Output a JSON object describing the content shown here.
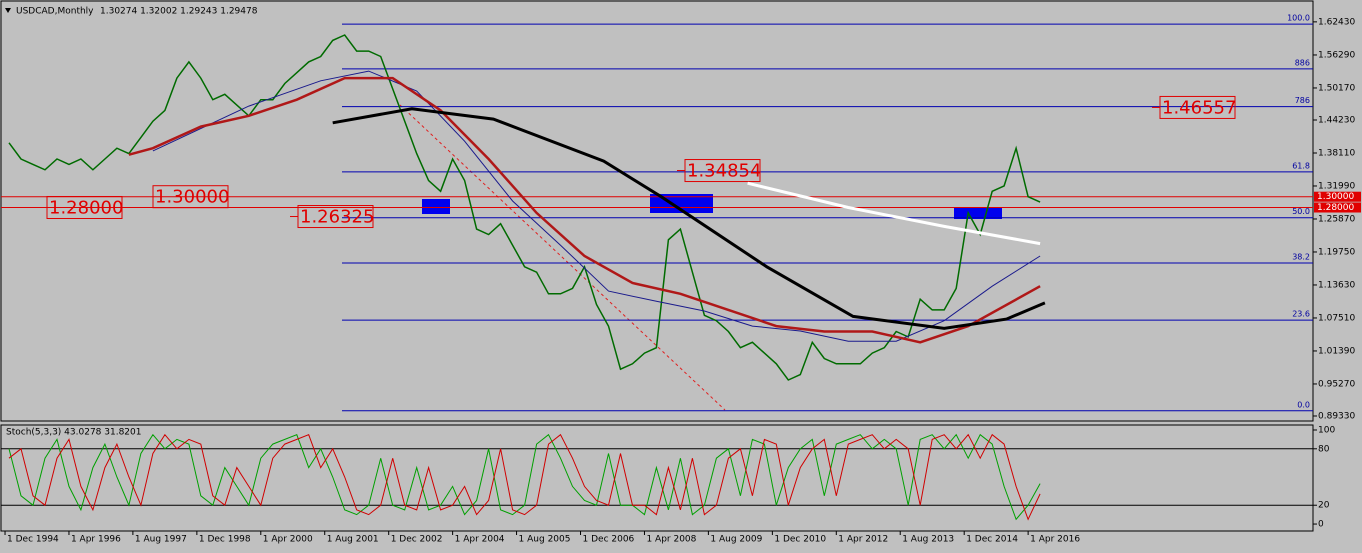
{
  "chart_data": [
    {
      "type": "line",
      "title": "USDCAD,Monthly",
      "subtitle": "1.30274 1.32002 1.29243 1.29478",
      "xlim": [
        1994.833,
        2022.19
      ],
      "ylim": [
        0.884,
        1.663
      ],
      "yticks": [
        {
          "value": 1.6243,
          "label": "1.62430"
        },
        {
          "value": 1.5629,
          "label": "1.56290"
        },
        {
          "value": 1.5017,
          "label": "1.50170"
        },
        {
          "value": 1.4423,
          "label": "1.44230"
        },
        {
          "value": 1.3811,
          "label": "1.38110"
        },
        {
          "value": 1.3199,
          "label": "1.31990"
        },
        {
          "value": 1.2587,
          "label": "1.25870"
        },
        {
          "value": 1.1975,
          "label": "1.19750"
        },
        {
          "value": 1.1363,
          "label": "1.13630"
        },
        {
          "value": 1.0751,
          "label": "1.07510"
        },
        {
          "value": 1.0139,
          "label": "1.01390"
        },
        {
          "value": 0.9527,
          "label": "0.95270"
        },
        {
          "value": 0.8933,
          "label": "0.89330"
        }
      ],
      "fib_levels": [
        {
          "value": 1.62,
          "label": "100.0"
        },
        {
          "value": 1.537,
          "label": "886"
        },
        {
          "value": 1.467,
          "label": "786"
        },
        {
          "value": 1.346,
          "label": "61.8"
        },
        {
          "value": 1.261,
          "label": "50.0"
        },
        {
          "value": 1.177,
          "label": "38.2"
        },
        {
          "value": 1.071,
          "label": "23.6"
        },
        {
          "value": 0.903,
          "label": "0.0"
        }
      ],
      "levels": [
        {
          "value": 1.3,
          "label": "1.30000"
        },
        {
          "value": 1.28,
          "label": "1.28000"
        }
      ],
      "price_labels": [
        {
          "value": 1.46557,
          "label": "1.46557"
        },
        {
          "value": 1.34854,
          "label": "1.34854"
        },
        {
          "value": 1.26325,
          "label": "1.26325"
        }
      ],
      "series": [
        {
          "color": "#006b00",
          "width": 1.5,
          "x": [
            1995,
            1995.25,
            1995.5,
            1995.75,
            1996,
            1996.25,
            1996.5,
            1996.75,
            1997,
            1997.25,
            1997.5,
            1997.75,
            1998,
            1998.25,
            1998.5,
            1998.75,
            1999,
            1999.25,
            1999.5,
            1999.75,
            2000,
            2000.25,
            2000.5,
            2000.75,
            2001,
            2001.25,
            2001.5,
            2001.75,
            2002,
            2002.25,
            2002.5,
            2002.75,
            2003,
            2003.25,
            2003.5,
            2003.75,
            2004,
            2004.25,
            2004.5,
            2004.75,
            2005,
            2005.25,
            2005.5,
            2005.75,
            2006,
            2006.25,
            2006.5,
            2006.75,
            2007,
            2007.25,
            2007.5,
            2007.75,
            2008,
            2008.25,
            2008.5,
            2008.75,
            2009,
            2009.25,
            2009.5,
            2009.75,
            2010,
            2010.25,
            2010.5,
            2010.75,
            2011,
            2011.25,
            2011.5,
            2011.75,
            2012,
            2012.25,
            2012.5,
            2012.75,
            2013,
            2013.25,
            2013.5,
            2013.75,
            2014,
            2014.25,
            2014.5,
            2014.75,
            2015,
            2015.25,
            2015.5,
            2015.75,
            2016,
            2016.25,
            2016.5
          ],
          "values": [
            1.4,
            1.37,
            1.36,
            1.35,
            1.37,
            1.36,
            1.37,
            1.35,
            1.37,
            1.39,
            1.38,
            1.41,
            1.44,
            1.46,
            1.52,
            1.55,
            1.52,
            1.48,
            1.49,
            1.47,
            1.45,
            1.48,
            1.48,
            1.51,
            1.53,
            1.55,
            1.56,
            1.59,
            1.6,
            1.57,
            1.57,
            1.56,
            1.5,
            1.44,
            1.38,
            1.33,
            1.31,
            1.37,
            1.33,
            1.24,
            1.23,
            1.25,
            1.21,
            1.17,
            1.16,
            1.12,
            1.12,
            1.13,
            1.17,
            1.1,
            1.06,
            0.98,
            0.99,
            1.01,
            1.02,
            1.22,
            1.24,
            1.16,
            1.08,
            1.07,
            1.05,
            1.02,
            1.03,
            1.01,
            0.99,
            0.96,
            0.97,
            1.03,
            1.0,
            0.99,
            0.99,
            0.99,
            1.01,
            1.02,
            1.05,
            1.04,
            1.11,
            1.09,
            1.09,
            1.13,
            1.27,
            1.23,
            1.31,
            1.32,
            1.39,
            1.3,
            1.29
          ]
        },
        {
          "color": "#1a1a8c",
          "width": 1,
          "x": [
            1998,
            2000,
            2001.5,
            2002.5,
            2003.5,
            2004.5,
            2005.5,
            2006.5,
            2007.5,
            2008.5,
            2009.5,
            2010.5,
            2011.5,
            2012.5,
            2013.5,
            2014.5,
            2015.5,
            2016.5
          ],
          "values": [
            1.385,
            1.468,
            1.515,
            1.533,
            1.496,
            1.403,
            1.292,
            1.21,
            1.125,
            1.106,
            1.088,
            1.06,
            1.051,
            1.032,
            1.032,
            1.07,
            1.134,
            1.19
          ]
        },
        {
          "color": "#b01818",
          "width": 2.5,
          "x": [
            1997.5,
            1998,
            1999,
            2000,
            2001,
            2002,
            2003,
            2004,
            2005,
            2006,
            2007,
            2008,
            2009,
            2010,
            2011,
            2012,
            2013,
            2014,
            2015,
            2016.5
          ],
          "values": [
            1.378,
            1.39,
            1.43,
            1.45,
            1.48,
            1.52,
            1.52,
            1.46,
            1.37,
            1.27,
            1.19,
            1.14,
            1.12,
            1.09,
            1.06,
            1.05,
            1.05,
            1.03,
            1.06,
            1.134
          ]
        },
        {
          "color": "#000000",
          "width": 3,
          "x": [
            2001.75,
            2003.4,
            2005.1,
            2007.4,
            2008.6,
            2010.8,
            2012.6,
            2014.5,
            2015.8,
            2016.6
          ],
          "values": [
            1.437,
            1.463,
            1.444,
            1.366,
            1.3,
            1.17,
            1.078,
            1.056,
            1.073,
            1.103
          ]
        },
        {
          "color": "#ffffff",
          "width": 3,
          "x": [
            2010.4,
            2012.5,
            2014.5,
            2016.5
          ],
          "values": [
            1.325,
            1.28,
            1.245,
            1.213
          ]
        }
      ]
    },
    {
      "type": "line",
      "title": "Stoch(5,3,3) 43.0278 31.8201",
      "xlim": [
        1994.833,
        2022.19
      ],
      "ylim": [
        -7.4,
        105.3
      ],
      "yticks": [
        0,
        20,
        80,
        100
      ],
      "levels": [
        20,
        80
      ],
      "xticks": [
        {
          "value": 1994.917,
          "label": "1 Dec 1994"
        },
        {
          "value": 1996.25,
          "label": "1 Apr 1996"
        },
        {
          "value": 1997.583,
          "label": "1 Aug 1997"
        },
        {
          "value": 1998.917,
          "label": "1 Dec 1998"
        },
        {
          "value": 2000.25,
          "label": "1 Apr 2000"
        },
        {
          "value": 2001.583,
          "label": "1 Aug 2001"
        },
        {
          "value": 2002.917,
          "label": "1 Dec 2002"
        },
        {
          "value": 2004.25,
          "label": "1 Apr 2004"
        },
        {
          "value": 2005.583,
          "label": "1 Aug 2005"
        },
        {
          "value": 2006.917,
          "label": "1 Dec 2006"
        },
        {
          "value": 2008.25,
          "label": "1 Apr 2008"
        },
        {
          "value": 2009.583,
          "label": "1 Aug 2009"
        },
        {
          "value": 2010.917,
          "label": "1 Dec 2010"
        },
        {
          "value": 2012.25,
          "label": "1 Apr 2012"
        },
        {
          "value": 2013.583,
          "label": "1 Aug 2013"
        },
        {
          "value": 2014.917,
          "label": "1 Dec 2014"
        },
        {
          "value": 2016.25,
          "label": "1 Apr 2016"
        }
      ],
      "series": [
        {
          "color": "#00a000",
          "width": 1,
          "x": [
            1995,
            1995.25,
            1995.5,
            1995.75,
            1996,
            1996.25,
            1996.5,
            1996.75,
            1997,
            1997.25,
            1997.5,
            1997.75,
            1998,
            1998.25,
            1998.5,
            1998.75,
            1999,
            1999.25,
            1999.5,
            1999.75,
            2000,
            2000.25,
            2000.5,
            2000.75,
            2001,
            2001.25,
            2001.5,
            2001.75,
            2002,
            2002.25,
            2002.5,
            2002.75,
            2003,
            2003.25,
            2003.5,
            2003.75,
            2004,
            2004.25,
            2004.5,
            2004.75,
            2005,
            2005.25,
            2005.5,
            2005.75,
            2006,
            2006.25,
            2006.5,
            2006.75,
            2007,
            2007.25,
            2007.5,
            2007.75,
            2008,
            2008.25,
            2008.5,
            2008.75,
            2009,
            2009.25,
            2009.5,
            2009.75,
            2010,
            2010.25,
            2010.5,
            2010.75,
            2011,
            2011.25,
            2011.5,
            2011.75,
            2012,
            2012.25,
            2012.5,
            2012.75,
            2013,
            2013.25,
            2013.5,
            2013.75,
            2014,
            2014.25,
            2014.5,
            2014.75,
            2015,
            2015.25,
            2015.5,
            2015.75,
            2016,
            2016.25,
            2016.5
          ],
          "values": [
            80,
            30,
            20,
            70,
            90,
            40,
            15,
            60,
            85,
            50,
            20,
            75,
            95,
            80,
            90,
            85,
            30,
            20,
            60,
            40,
            20,
            70,
            85,
            90,
            95,
            60,
            80,
            50,
            15,
            10,
            20,
            70,
            20,
            15,
            60,
            15,
            20,
            40,
            10,
            25,
            80,
            15,
            10,
            20,
            85,
            95,
            70,
            40,
            25,
            20,
            75,
            20,
            20,
            10,
            60,
            15,
            70,
            10,
            20,
            70,
            80,
            30,
            90,
            85,
            20,
            60,
            80,
            90,
            30,
            85,
            90,
            95,
            80,
            90,
            80,
            20,
            90,
            95,
            80,
            95,
            70,
            95,
            85,
            40,
            5,
            20,
            43
          ]
        },
        {
          "color": "#d00000",
          "width": 1,
          "x": [
            1995,
            1995.25,
            1995.5,
            1995.75,
            1996,
            1996.25,
            1996.5,
            1996.75,
            1997,
            1997.25,
            1997.5,
            1997.75,
            1998,
            1998.25,
            1998.5,
            1998.75,
            1999,
            1999.25,
            1999.5,
            1999.75,
            2000,
            2000.25,
            2000.5,
            2000.75,
            2001,
            2001.25,
            2001.5,
            2001.75,
            2002,
            2002.25,
            2002.5,
            2002.75,
            2003,
            2003.25,
            2003.5,
            2003.75,
            2004,
            2004.25,
            2004.5,
            2004.75,
            2005,
            2005.25,
            2005.5,
            2005.75,
            2006,
            2006.25,
            2006.5,
            2006.75,
            2007,
            2007.25,
            2007.5,
            2007.75,
            2008,
            2008.25,
            2008.5,
            2008.75,
            2009,
            2009.25,
            2009.5,
            2009.75,
            2010,
            2010.25,
            2010.5,
            2010.75,
            2011,
            2011.25,
            2011.5,
            2011.75,
            2012,
            2012.25,
            2012.5,
            2012.75,
            2013,
            2013.25,
            2013.5,
            2013.75,
            2014,
            2014.25,
            2014.5,
            2014.75,
            2015,
            2015.25,
            2015.5,
            2015.75,
            2016,
            2016.25,
            2016.5
          ],
          "values": [
            70,
            80,
            30,
            20,
            70,
            90,
            40,
            15,
            60,
            85,
            50,
            20,
            75,
            95,
            80,
            90,
            85,
            30,
            20,
            60,
            40,
            20,
            70,
            85,
            90,
            95,
            60,
            80,
            50,
            15,
            10,
            20,
            70,
            20,
            15,
            60,
            15,
            20,
            40,
            10,
            25,
            80,
            15,
            10,
            20,
            85,
            95,
            70,
            40,
            25,
            20,
            75,
            20,
            20,
            10,
            60,
            15,
            70,
            10,
            20,
            70,
            80,
            30,
            90,
            85,
            20,
            60,
            80,
            90,
            30,
            85,
            90,
            95,
            80,
            90,
            80,
            20,
            90,
            95,
            80,
            95,
            70,
            95,
            85,
            40,
            5,
            32
          ]
        }
      ]
    }
  ]
}
